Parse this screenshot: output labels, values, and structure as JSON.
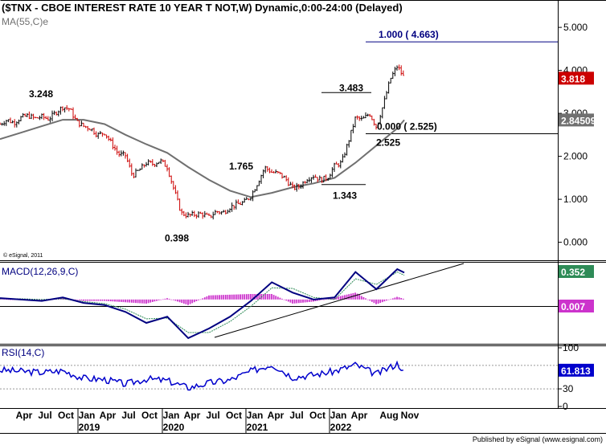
{
  "header": {
    "title": "($TNX - CBOE INTEREST RATE 10 YEAR T NOT,W) Dynamic,0:00-24:00 (Delayed)",
    "ma_label": "MA(55,C)e"
  },
  "footer": {
    "copyright": "© eSignal, 2011",
    "published": "Published by eSignal (www.esignal.com)"
  },
  "colors": {
    "price_up": "#000000",
    "price_down": "#cc0000",
    "ma": "#707070",
    "macd_line": "#000080",
    "signal_line": "#2e8b57",
    "histogram": "#cc33cc",
    "rsi_line": "#0000cc",
    "last_price_badge": "#cc0000",
    "ma_badge": "#707070",
    "macd_badge": "#2e8b57",
    "hist_badge": "#cc33cc",
    "rsi_badge": "#0000cc"
  },
  "chart_data": [
    {
      "type": "line",
      "panel": "price",
      "ylim": [
        -0.4,
        5.6
      ],
      "yticks": [
        0.0,
        1.0,
        2.0,
        3.0,
        4.0,
        5.0
      ],
      "ytick_labels": [
        "0.000",
        "1.000",
        "2.000",
        "3.000",
        "4.000",
        "5.000"
      ],
      "x_month_labels": [
        "Apr",
        "Jul",
        "Oct",
        "Jan",
        "Apr",
        "Jul",
        "Oct",
        "Jan",
        "Apr",
        "Jul",
        "Oct",
        "Jan",
        "Apr",
        "Jul",
        "Oct",
        "Jan",
        "Apr",
        "Aug",
        "Nov"
      ],
      "x_year_labels": [
        "2019",
        "2020",
        "2021",
        "2022"
      ],
      "series": [
        {
          "style": "ohlc-bars",
          "x": [
            "2018-01",
            "2018-02",
            "2018-03",
            "2018-04",
            "2018-05",
            "2018-06",
            "2018-07",
            "2018-08",
            "2018-09",
            "2018-10",
            "2018-11",
            "2018-12",
            "2019-01",
            "2019-02",
            "2019-03",
            "2019-04",
            "2019-05",
            "2019-06",
            "2019-07",
            "2019-08",
            "2019-09",
            "2019-10",
            "2019-11",
            "2019-12",
            "2020-01",
            "2020-02",
            "2020-03",
            "2020-04",
            "2020-05",
            "2020-06",
            "2020-07",
            "2020-08",
            "2020-09",
            "2020-10",
            "2020-11",
            "2020-12",
            "2021-01",
            "2021-02",
            "2021-03",
            "2021-04",
            "2021-05",
            "2021-06",
            "2021-07",
            "2021-08",
            "2021-09",
            "2021-10",
            "2021-11",
            "2021-12",
            "2022-01",
            "2022-02",
            "2022-03",
            "2022-04",
            "2022-05",
            "2022-06",
            "2022-07",
            "2022-08",
            "2022-09",
            "2022-10",
            "2022-11"
          ],
          "values": [
            2.75,
            2.85,
            2.78,
            2.9,
            2.95,
            2.88,
            2.92,
            2.87,
            3.02,
            3.15,
            3.1,
            2.8,
            2.7,
            2.65,
            2.5,
            2.55,
            2.3,
            2.05,
            2.02,
            1.55,
            1.68,
            1.85,
            1.82,
            1.9,
            1.75,
            1.2,
            0.68,
            0.62,
            0.65,
            0.66,
            0.58,
            0.72,
            0.69,
            0.82,
            0.88,
            0.93,
            1.08,
            1.4,
            1.74,
            1.63,
            1.6,
            1.47,
            1.26,
            1.3,
            1.48,
            1.55,
            1.45,
            1.51,
            1.78,
            1.85,
            2.35,
            2.9,
            2.85,
            3.0,
            2.68,
            3.2,
            3.8,
            4.1,
            3.818
          ],
          "last_label": "3.818"
        },
        {
          "name": "MA(55,C)e",
          "x": [
            "2018-01",
            "2018-04",
            "2018-07",
            "2018-10",
            "2019-01",
            "2019-04",
            "2019-07",
            "2019-10",
            "2020-01",
            "2020-04",
            "2020-07",
            "2020-10",
            "2021-01",
            "2021-04",
            "2021-07",
            "2021-10",
            "2022-01",
            "2022-04",
            "2022-07",
            "2022-10",
            "2022-11"
          ],
          "values": [
            2.4,
            2.55,
            2.7,
            2.85,
            2.85,
            2.75,
            2.5,
            2.28,
            2.08,
            1.75,
            1.45,
            1.2,
            1.05,
            1.15,
            1.28,
            1.37,
            1.5,
            1.85,
            2.25,
            2.65,
            2.845
          ],
          "last_label": "2.845094"
        }
      ],
      "annotations": [
        "3.248",
        "0.398",
        "1.765",
        "1.343",
        "3.483",
        "2.525",
        "1.000 ( 4.663)",
        "0.000 ( 2.525)"
      ],
      "levels": [
        4.663,
        2.525,
        3.483,
        1.343
      ]
    },
    {
      "type": "line",
      "panel": "macd",
      "title": "MACD(12,26,9,C)",
      "ylim": [
        -0.62,
        0.5
      ],
      "series": [
        {
          "name": "MACD",
          "x": [
            "2018-01",
            "2018-04",
            "2018-07",
            "2018-10",
            "2019-01",
            "2019-04",
            "2019-07",
            "2019-10",
            "2020-01",
            "2020-04",
            "2020-07",
            "2020-10",
            "2021-01",
            "2021-04",
            "2021-07",
            "2021-10",
            "2022-01",
            "2022-04",
            "2022-07",
            "2022-10",
            "2022-11"
          ],
          "values": [
            0.02,
            0.0,
            -0.02,
            0.03,
            -0.05,
            -0.08,
            -0.18,
            -0.34,
            -0.25,
            -0.56,
            -0.42,
            -0.25,
            -0.02,
            0.25,
            0.1,
            0.0,
            0.03,
            0.4,
            0.15,
            0.44,
            0.39
          ]
        },
        {
          "name": "Signal",
          "x": [
            "2018-01",
            "2018-04",
            "2018-07",
            "2018-10",
            "2019-01",
            "2019-04",
            "2019-07",
            "2019-10",
            "2020-01",
            "2020-04",
            "2020-07",
            "2020-10",
            "2021-01",
            "2021-04",
            "2021-07",
            "2021-10",
            "2022-01",
            "2022-04",
            "2022-07",
            "2022-10",
            "2022-11"
          ],
          "values": [
            0.01,
            0.01,
            0.0,
            0.01,
            -0.03,
            -0.06,
            -0.14,
            -0.28,
            -0.27,
            -0.48,
            -0.48,
            -0.32,
            -0.1,
            0.17,
            0.16,
            0.03,
            0.0,
            0.3,
            0.22,
            0.4,
            0.352
          ]
        },
        {
          "name": "Histogram",
          "x": [
            "2018-01",
            "2018-04",
            "2018-07",
            "2018-10",
            "2019-01",
            "2019-04",
            "2019-07",
            "2019-10",
            "2020-01",
            "2020-04",
            "2020-07",
            "2020-10",
            "2021-01",
            "2021-04",
            "2021-07",
            "2021-10",
            "2022-01",
            "2022-04",
            "2022-07",
            "2022-10",
            "2022-11"
          ],
          "values": [
            0.01,
            -0.01,
            -0.02,
            0.02,
            -0.02,
            -0.02,
            -0.04,
            -0.06,
            0.02,
            -0.08,
            0.06,
            0.07,
            0.08,
            0.08,
            -0.06,
            -0.03,
            0.03,
            0.1,
            -0.07,
            0.04,
            0.007
          ]
        }
      ],
      "badges": [
        "0.352",
        "0.007"
      ]
    },
    {
      "type": "line",
      "panel": "rsi",
      "title": "RSI(14,C)",
      "ylim": [
        0,
        100
      ],
      "yticks": [
        0,
        30,
        70,
        100
      ],
      "ytick_labels": [
        "0",
        "30",
        "70",
        "100"
      ],
      "series": [
        {
          "name": "RSI",
          "x": [
            "2018-01",
            "2018-04",
            "2018-07",
            "2018-10",
            "2019-01",
            "2019-04",
            "2019-07",
            "2019-10",
            "2020-01",
            "2020-04",
            "2020-07",
            "2020-10",
            "2021-01",
            "2021-04",
            "2021-07",
            "2021-10",
            "2022-01",
            "2022-04",
            "2022-07",
            "2022-10",
            "2022-11"
          ],
          "values": [
            62,
            60,
            58,
            61,
            48,
            46,
            38,
            47,
            44,
            32,
            40,
            45,
            60,
            72,
            50,
            54,
            60,
            71,
            55,
            73,
            61.813
          ]
        }
      ],
      "badges": [
        "61.813"
      ]
    }
  ]
}
